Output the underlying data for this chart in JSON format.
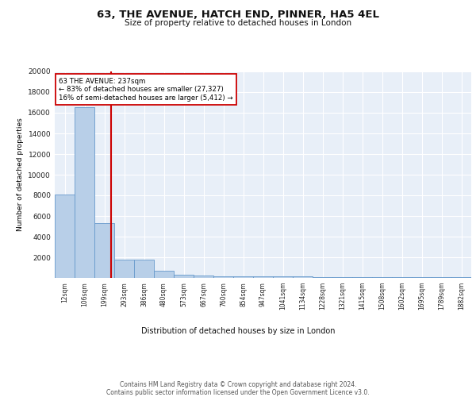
{
  "title": "63, THE AVENUE, HATCH END, PINNER, HA5 4EL",
  "subtitle": "Size of property relative to detached houses in London",
  "xlabel": "Distribution of detached houses by size in London",
  "ylabel": "Number of detached properties",
  "bar_labels": [
    "12sqm",
    "106sqm",
    "199sqm",
    "293sqm",
    "386sqm",
    "480sqm",
    "573sqm",
    "667sqm",
    "760sqm",
    "854sqm",
    "947sqm",
    "1041sqm",
    "1134sqm",
    "1228sqm",
    "1321sqm",
    "1415sqm",
    "1508sqm",
    "1602sqm",
    "1695sqm",
    "1789sqm",
    "1882sqm"
  ],
  "bar_values": [
    8100,
    16500,
    5300,
    1800,
    1750,
    700,
    300,
    220,
    190,
    170,
    160,
    130,
    120,
    110,
    100,
    90,
    80,
    70,
    60,
    50,
    40
  ],
  "bar_color": "#b8cfe8",
  "bar_edge_color": "#6699cc",
  "background_color": "#e8eff8",
  "grid_color": "#ffffff",
  "vline_x": 2.35,
  "vline_color": "#cc0000",
  "annotation_text": "63 THE AVENUE: 237sqm\n← 83% of detached houses are smaller (27,327)\n16% of semi-detached houses are larger (5,412) →",
  "annotation_box_color": "#ffffff",
  "annotation_box_edge": "#cc0000",
  "footer_text": "Contains HM Land Registry data © Crown copyright and database right 2024.\nContains public sector information licensed under the Open Government Licence v3.0.",
  "ylim": [
    0,
    20000
  ],
  "yticks": [
    0,
    2000,
    4000,
    6000,
    8000,
    10000,
    12000,
    14000,
    16000,
    18000,
    20000
  ],
  "title_fontsize": 9.5,
  "subtitle_fontsize": 7.5
}
